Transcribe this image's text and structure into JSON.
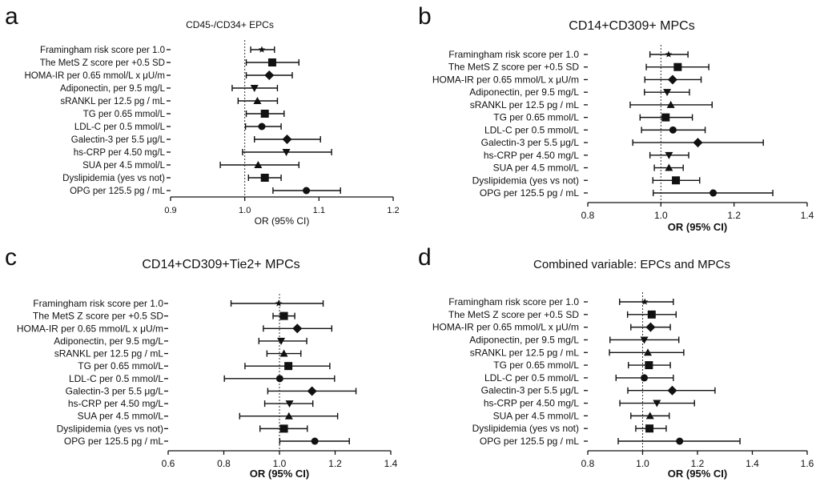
{
  "chart_data": [
    {
      "type": "forest",
      "panel_label": "a",
      "title": "CD45-/CD34+ EPCs",
      "xlabel": "OR (95% CI)",
      "xlim": [
        0.9,
        1.2
      ],
      "xticks": [
        "0.9",
        "1.0",
        "1.1",
        "1.2"
      ],
      "reference_line": 1.0,
      "rows": [
        {
          "label": "Framingham risk score per 1.0",
          "or": 1.023,
          "lo": 1.008,
          "hi": 1.04,
          "marker": "star"
        },
        {
          "label": "The MetS Z score per +0.5 SD",
          "or": 1.037,
          "lo": 1.002,
          "hi": 1.073,
          "marker": "square"
        },
        {
          "label": "HOMA-IR per 0.65 mmol/L x μU/m",
          "or": 1.033,
          "lo": 1.002,
          "hi": 1.064,
          "marker": "diamond"
        },
        {
          "label": "Adiponectin, per 9.5 mg/L",
          "or": 1.013,
          "lo": 0.983,
          "hi": 1.044,
          "marker": "tri-down"
        },
        {
          "label": "sRANKL per 12.5 pg / mL",
          "or": 1.017,
          "lo": 0.991,
          "hi": 1.044,
          "marker": "tri-up"
        },
        {
          "label": "TG per 0.65 mmol/L",
          "or": 1.027,
          "lo": 1.002,
          "hi": 1.053,
          "marker": "square"
        },
        {
          "label": "LDL-C per 0.5 mmol/L",
          "or": 1.023,
          "lo": 1.001,
          "hi": 1.049,
          "marker": "circle"
        },
        {
          "label": "Galectin-3 per 5.5 μg/L",
          "or": 1.057,
          "lo": 1.013,
          "hi": 1.102,
          "marker": "diamond"
        },
        {
          "label": "hs-CRP per 4.50 mg/L",
          "or": 1.056,
          "lo": 0.997,
          "hi": 1.117,
          "marker": "tri-down"
        },
        {
          "label": "SUA per 4.5 mmol/L",
          "or": 1.018,
          "lo": 0.967,
          "hi": 1.073,
          "marker": "tri-up"
        },
        {
          "label": "Dyslipidemia (yes vs not)",
          "or": 1.027,
          "lo": 1.005,
          "hi": 1.049,
          "marker": "square"
        },
        {
          "label": "OPG per 125.5 pg / mL",
          "or": 1.083,
          "lo": 1.038,
          "hi": 1.129,
          "marker": "circle"
        }
      ]
    },
    {
      "type": "forest",
      "panel_label": "b",
      "title": "CD14+CD309+ MPCs",
      "xlabel": "OR (95% CI)",
      "xlim": [
        0.8,
        1.4
      ],
      "xticks": [
        "0.8",
        "1.0",
        "1.2",
        "1.4"
      ],
      "reference_line": 1.0,
      "rows": [
        {
          "label": "Framingham risk score per 1.0",
          "or": 1.021,
          "lo": 0.97,
          "hi": 1.074,
          "marker": "star"
        },
        {
          "label": "The MetS Z score per +0.5 SD",
          "or": 1.046,
          "lo": 0.96,
          "hi": 1.131,
          "marker": "square"
        },
        {
          "label": "HOMA-IR per 0.65 mmol/L x μU/m",
          "or": 1.032,
          "lo": 0.956,
          "hi": 1.11,
          "marker": "diamond"
        },
        {
          "label": "Adiponectin, per 9.5 mg/L",
          "or": 1.017,
          "lo": 0.955,
          "hi": 1.078,
          "marker": "tri-down"
        },
        {
          "label": "sRANKL per 12.5 pg / mL",
          "or": 1.027,
          "lo": 0.916,
          "hi": 1.14,
          "marker": "tri-up"
        },
        {
          "label": "TG per 0.65 mmol/L",
          "or": 1.013,
          "lo": 0.943,
          "hi": 1.086,
          "marker": "square"
        },
        {
          "label": "LDL-C per 0.5 mmol/L",
          "or": 1.033,
          "lo": 0.947,
          "hi": 1.121,
          "marker": "circle"
        },
        {
          "label": "Galectin-3 per 5.5 μg/L",
          "or": 1.101,
          "lo": 0.923,
          "hi": 1.28,
          "marker": "diamond"
        },
        {
          "label": "hs-CRP per 4.50 mg/L",
          "or": 1.022,
          "lo": 0.97,
          "hi": 1.076,
          "marker": "tri-down"
        },
        {
          "label": "SUA per 4.5 mmol/L",
          "or": 1.022,
          "lo": 0.982,
          "hi": 1.061,
          "marker": "tri-up"
        },
        {
          "label": "Dyslipidemia (yes vs not)",
          "or": 1.041,
          "lo": 0.978,
          "hi": 1.106,
          "marker": "square"
        },
        {
          "label": "OPG per 125.5 pg / mL",
          "or": 1.143,
          "lo": 0.979,
          "hi": 1.306,
          "marker": "circle"
        }
      ]
    },
    {
      "type": "forest",
      "panel_label": "c",
      "title": "CD14+CD309+Tie2+ MPCs",
      "xlabel": "OR (95% CI)",
      "xlim": [
        0.6,
        1.4
      ],
      "xticks": [
        "0.6",
        "0.8",
        "1.0",
        "1.2",
        "1.4"
      ],
      "reference_line": 1.0,
      "rows": [
        {
          "label": "Framingham risk score per 1.0",
          "or": 0.997,
          "lo": 0.826,
          "hi": 1.157,
          "marker": "star"
        },
        {
          "label": "The MetS Z score per +0.5 SD",
          "or": 1.016,
          "lo": 0.977,
          "hi": 1.055,
          "marker": "square"
        },
        {
          "label": "HOMA-IR per 0.65 mmol/L x μU/m",
          "or": 1.064,
          "lo": 0.942,
          "hi": 1.188,
          "marker": "diamond"
        },
        {
          "label": "Adiponectin, per 9.5 mg/L",
          "or": 1.006,
          "lo": 0.926,
          "hi": 1.098,
          "marker": "tri-down"
        },
        {
          "label": "sRANKL per 12.5 pg / mL",
          "or": 1.016,
          "lo": 0.955,
          "hi": 1.077,
          "marker": "tri-up"
        },
        {
          "label": "TG per 0.65 mmol/L",
          "or": 1.032,
          "lo": 0.876,
          "hi": 1.181,
          "marker": "square"
        },
        {
          "label": "LDL-C per 0.5 mmol/L",
          "or": 1.001,
          "lo": 0.802,
          "hi": 1.198,
          "marker": "circle"
        },
        {
          "label": "Galectin-3 per 5.5 μg/L",
          "or": 1.117,
          "lo": 0.958,
          "hi": 1.275,
          "marker": "diamond"
        },
        {
          "label": "hs-CRP per 4.50 mg/L",
          "or": 1.036,
          "lo": 0.947,
          "hi": 1.12,
          "marker": "tri-down"
        },
        {
          "label": "SUA per 4.5 mmol/L",
          "or": 1.034,
          "lo": 0.857,
          "hi": 1.209,
          "marker": "tri-up"
        },
        {
          "label": "Dyslipidemia (yes vs not)",
          "or": 1.016,
          "lo": 0.93,
          "hi": 1.1,
          "marker": "square"
        },
        {
          "label": "OPG per 125.5 pg / mL",
          "or": 1.127,
          "lo": 1.001,
          "hi": 1.251,
          "marker": "circle"
        }
      ]
    },
    {
      "type": "forest",
      "panel_label": "d",
      "title": "Combined variable: EPCs and MPCs",
      "xlabel": "OR (95% CI)",
      "xlim": [
        0.8,
        1.6
      ],
      "xticks": [
        "0.8",
        "1.0",
        "1.2",
        "1.4",
        "1.6"
      ],
      "reference_line": 1.0,
      "rows": [
        {
          "label": "Framingham risk score per 1.0",
          "or": 1.008,
          "lo": 0.916,
          "hi": 1.112,
          "marker": "star"
        },
        {
          "label": "The MetS Z score per +0.5 SD",
          "or": 1.033,
          "lo": 0.945,
          "hi": 1.122,
          "marker": "square"
        },
        {
          "label": "HOMA-IR per 0.65 mmol/L x μU/m",
          "or": 1.029,
          "lo": 0.957,
          "hi": 1.101,
          "marker": "diamond"
        },
        {
          "label": "Adiponectin, per 9.5 mg/L",
          "or": 1.006,
          "lo": 0.881,
          "hi": 1.132,
          "marker": "tri-down"
        },
        {
          "label": "sRANKL per 12.5 pg / mL",
          "or": 1.019,
          "lo": 0.879,
          "hi": 1.15,
          "marker": "tri-up"
        },
        {
          "label": "TG per 0.65 mmol/L",
          "or": 1.023,
          "lo": 0.948,
          "hi": 1.101,
          "marker": "square"
        },
        {
          "label": "LDL-C per 0.5 mmol/L",
          "or": 1.006,
          "lo": 0.903,
          "hi": 1.112,
          "marker": "circle"
        },
        {
          "label": "Galectin-3 per 5.5 μg/L",
          "or": 1.108,
          "lo": 0.946,
          "hi": 1.264,
          "marker": "diamond"
        },
        {
          "label": "hs-CRP per 4.50 mg/L",
          "or": 1.052,
          "lo": 0.917,
          "hi": 1.189,
          "marker": "tri-down"
        },
        {
          "label": "SUA per 4.5 mmol/L",
          "or": 1.027,
          "lo": 0.957,
          "hi": 1.097,
          "marker": "tri-up"
        },
        {
          "label": "Dyslipidemia (yes vs not)",
          "or": 1.025,
          "lo": 0.975,
          "hi": 1.086,
          "marker": "square"
        },
        {
          "label": "OPG per 125.5 pg / mL",
          "or": 1.135,
          "lo": 0.911,
          "hi": 1.355,
          "marker": "circle"
        }
      ]
    }
  ]
}
